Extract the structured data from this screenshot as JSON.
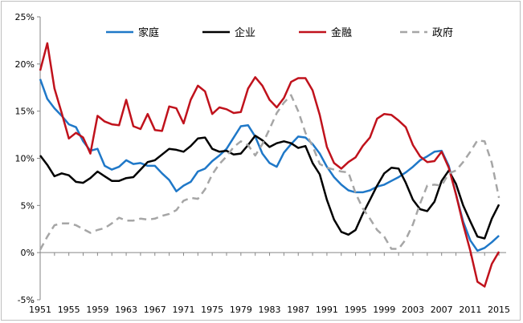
{
  "chart_data": {
    "type": "line",
    "title": "",
    "xlabel": "",
    "ylabel": "",
    "ylim": [
      -0.05,
      0.25
    ],
    "y_ticks": [
      -0.05,
      0.0,
      0.05,
      0.1,
      0.15,
      0.2,
      0.25
    ],
    "y_tick_labels": [
      "-5%",
      "0%",
      "5%",
      "10%",
      "15%",
      "20%",
      "25%"
    ],
    "xlim": [
      1951,
      2016
    ],
    "x_ticks": [
      1951,
      1955,
      1959,
      1963,
      1967,
      1971,
      1975,
      1979,
      1983,
      1987,
      1991,
      1995,
      1999,
      2003,
      2007,
      2011,
      2015
    ],
    "x_tick_labels": [
      "1951",
      "1955",
      "1959",
      "1963",
      "1967",
      "1971",
      "1975",
      "1979",
      "1983",
      "1987",
      "1991",
      "1995",
      "1999",
      "2003",
      "2007",
      "2011",
      "2015"
    ],
    "legend_position": "top",
    "grid": false,
    "series": [
      {
        "name": "家庭",
        "color": "#1f78c8",
        "dash": "solid",
        "points": [
          [
            1951,
            0.184
          ],
          [
            1952,
            0.163
          ],
          [
            1953,
            0.153
          ],
          [
            1954,
            0.145
          ],
          [
            1955,
            0.136
          ],
          [
            1956,
            0.133
          ],
          [
            1957,
            0.118
          ],
          [
            1958,
            0.108
          ],
          [
            1959,
            0.11
          ],
          [
            1960,
            0.092
          ],
          [
            1961,
            0.088
          ],
          [
            1962,
            0.091
          ],
          [
            1963,
            0.098
          ],
          [
            1964,
            0.094
          ],
          [
            1965,
            0.095
          ],
          [
            1966,
            0.092
          ],
          [
            1967,
            0.092
          ],
          [
            1968,
            0.084
          ],
          [
            1969,
            0.077
          ],
          [
            1970,
            0.065
          ],
          [
            1971,
            0.071
          ],
          [
            1972,
            0.075
          ],
          [
            1973,
            0.086
          ],
          [
            1974,
            0.089
          ],
          [
            1975,
            0.097
          ],
          [
            1976,
            0.103
          ],
          [
            1977,
            0.11
          ],
          [
            1978,
            0.122
          ],
          [
            1979,
            0.134
          ],
          [
            1980,
            0.135
          ],
          [
            1981,
            0.123
          ],
          [
            1982,
            0.105
          ],
          [
            1983,
            0.095
          ],
          [
            1984,
            0.091
          ],
          [
            1985,
            0.106
          ],
          [
            1986,
            0.115
          ],
          [
            1987,
            0.123
          ],
          [
            1988,
            0.122
          ],
          [
            1989,
            0.115
          ],
          [
            1990,
            0.105
          ],
          [
            1991,
            0.091
          ],
          [
            1992,
            0.08
          ],
          [
            1993,
            0.072
          ],
          [
            1994,
            0.066
          ],
          [
            1995,
            0.064
          ],
          [
            1996,
            0.064
          ],
          [
            1997,
            0.066
          ],
          [
            1998,
            0.07
          ],
          [
            1999,
            0.072
          ],
          [
            2000,
            0.076
          ],
          [
            2001,
            0.08
          ],
          [
            2002,
            0.085
          ],
          [
            2003,
            0.091
          ],
          [
            2004,
            0.098
          ],
          [
            2005,
            0.102
          ],
          [
            2006,
            0.107
          ],
          [
            2007,
            0.108
          ],
          [
            2008,
            0.092
          ],
          [
            2009,
            0.062
          ],
          [
            2010,
            0.033
          ],
          [
            2011,
            0.013
          ],
          [
            2012,
            0.002
          ],
          [
            2013,
            0.005
          ],
          [
            2014,
            0.011
          ],
          [
            2015,
            0.018
          ]
        ]
      },
      {
        "name": "企业",
        "color": "#000000",
        "dash": "solid",
        "points": [
          [
            1951,
            0.103
          ],
          [
            1952,
            0.093
          ],
          [
            1953,
            0.081
          ],
          [
            1954,
            0.084
          ],
          [
            1955,
            0.082
          ],
          [
            1956,
            0.075
          ],
          [
            1957,
            0.074
          ],
          [
            1958,
            0.079
          ],
          [
            1959,
            0.086
          ],
          [
            1960,
            0.081
          ],
          [
            1961,
            0.076
          ],
          [
            1962,
            0.076
          ],
          [
            1963,
            0.079
          ],
          [
            1964,
            0.08
          ],
          [
            1965,
            0.088
          ],
          [
            1966,
            0.096
          ],
          [
            1967,
            0.098
          ],
          [
            1968,
            0.104
          ],
          [
            1969,
            0.11
          ],
          [
            1970,
            0.109
          ],
          [
            1971,
            0.107
          ],
          [
            1972,
            0.113
          ],
          [
            1973,
            0.121
          ],
          [
            1974,
            0.122
          ],
          [
            1975,
            0.11
          ],
          [
            1976,
            0.107
          ],
          [
            1977,
            0.108
          ],
          [
            1978,
            0.104
          ],
          [
            1979,
            0.105
          ],
          [
            1980,
            0.114
          ],
          [
            1981,
            0.124
          ],
          [
            1982,
            0.119
          ],
          [
            1983,
            0.112
          ],
          [
            1984,
            0.116
          ],
          [
            1985,
            0.118
          ],
          [
            1986,
            0.116
          ],
          [
            1987,
            0.111
          ],
          [
            1988,
            0.113
          ],
          [
            1989,
            0.095
          ],
          [
            1990,
            0.083
          ],
          [
            1991,
            0.056
          ],
          [
            1992,
            0.035
          ],
          [
            1993,
            0.022
          ],
          [
            1994,
            0.019
          ],
          [
            1995,
            0.024
          ],
          [
            1996,
            0.041
          ],
          [
            1997,
            0.056
          ],
          [
            1998,
            0.071
          ],
          [
            1999,
            0.084
          ],
          [
            2000,
            0.09
          ],
          [
            2001,
            0.089
          ],
          [
            2002,
            0.074
          ],
          [
            2003,
            0.056
          ],
          [
            2004,
            0.046
          ],
          [
            2005,
            0.044
          ],
          [
            2006,
            0.054
          ],
          [
            2007,
            0.076
          ],
          [
            2008,
            0.087
          ],
          [
            2009,
            0.073
          ],
          [
            2010,
            0.05
          ],
          [
            2011,
            0.033
          ],
          [
            2012,
            0.017
          ],
          [
            2013,
            0.015
          ],
          [
            2014,
            0.036
          ],
          [
            2015,
            0.051
          ]
        ]
      },
      {
        "name": "金融",
        "color": "#c0121c",
        "dash": "solid",
        "points": [
          [
            1951,
            0.193
          ],
          [
            1952,
            0.222
          ],
          [
            1953,
            0.174
          ],
          [
            1954,
            0.148
          ],
          [
            1955,
            0.121
          ],
          [
            1956,
            0.127
          ],
          [
            1957,
            0.122
          ],
          [
            1958,
            0.105
          ],
          [
            1959,
            0.145
          ],
          [
            1960,
            0.139
          ],
          [
            1961,
            0.136
          ],
          [
            1962,
            0.135
          ],
          [
            1963,
            0.162
          ],
          [
            1964,
            0.134
          ],
          [
            1965,
            0.131
          ],
          [
            1966,
            0.147
          ],
          [
            1967,
            0.13
          ],
          [
            1968,
            0.129
          ],
          [
            1969,
            0.155
          ],
          [
            1970,
            0.153
          ],
          [
            1971,
            0.137
          ],
          [
            1972,
            0.162
          ],
          [
            1973,
            0.177
          ],
          [
            1974,
            0.171
          ],
          [
            1975,
            0.147
          ],
          [
            1976,
            0.154
          ],
          [
            1977,
            0.152
          ],
          [
            1978,
            0.148
          ],
          [
            1979,
            0.149
          ],
          [
            1980,
            0.174
          ],
          [
            1981,
            0.186
          ],
          [
            1982,
            0.177
          ],
          [
            1983,
            0.162
          ],
          [
            1984,
            0.154
          ],
          [
            1985,
            0.164
          ],
          [
            1986,
            0.181
          ],
          [
            1987,
            0.185
          ],
          [
            1988,
            0.185
          ],
          [
            1989,
            0.172
          ],
          [
            1990,
            0.146
          ],
          [
            1991,
            0.112
          ],
          [
            1992,
            0.095
          ],
          [
            1993,
            0.089
          ],
          [
            1994,
            0.096
          ],
          [
            1995,
            0.101
          ],
          [
            1996,
            0.113
          ],
          [
            1997,
            0.122
          ],
          [
            1998,
            0.142
          ],
          [
            1999,
            0.147
          ],
          [
            2000,
            0.146
          ],
          [
            2001,
            0.14
          ],
          [
            2002,
            0.133
          ],
          [
            2003,
            0.114
          ],
          [
            2004,
            0.102
          ],
          [
            2005,
            0.096
          ],
          [
            2006,
            0.097
          ],
          [
            2007,
            0.107
          ],
          [
            2008,
            0.09
          ],
          [
            2009,
            0.062
          ],
          [
            2010,
            0.03
          ],
          [
            2011,
            0.002
          ],
          [
            2012,
            -0.031
          ],
          [
            2013,
            -0.036
          ],
          [
            2014,
            -0.012
          ],
          [
            2015,
            0.001
          ]
        ]
      },
      {
        "name": "政府",
        "color": "#a6a6a6",
        "dash": "dashed",
        "points": [
          [
            1951,
            0.003
          ],
          [
            1952,
            0.017
          ],
          [
            1953,
            0.029
          ],
          [
            1954,
            0.031
          ],
          [
            1955,
            0.031
          ],
          [
            1956,
            0.029
          ],
          [
            1957,
            0.025
          ],
          [
            1958,
            0.021
          ],
          [
            1959,
            0.024
          ],
          [
            1960,
            0.026
          ],
          [
            1961,
            0.031
          ],
          [
            1962,
            0.037
          ],
          [
            1963,
            0.034
          ],
          [
            1964,
            0.034
          ],
          [
            1965,
            0.036
          ],
          [
            1966,
            0.035
          ],
          [
            1967,
            0.036
          ],
          [
            1968,
            0.039
          ],
          [
            1969,
            0.041
          ],
          [
            1970,
            0.045
          ],
          [
            1971,
            0.055
          ],
          [
            1972,
            0.058
          ],
          [
            1973,
            0.057
          ],
          [
            1974,
            0.067
          ],
          [
            1975,
            0.083
          ],
          [
            1976,
            0.094
          ],
          [
            1977,
            0.102
          ],
          [
            1978,
            0.112
          ],
          [
            1979,
            0.118
          ],
          [
            1980,
            0.114
          ],
          [
            1981,
            0.103
          ],
          [
            1982,
            0.115
          ],
          [
            1983,
            0.131
          ],
          [
            1984,
            0.148
          ],
          [
            1985,
            0.159
          ],
          [
            1986,
            0.167
          ],
          [
            1987,
            0.15
          ],
          [
            1988,
            0.127
          ],
          [
            1989,
            0.113
          ],
          [
            1990,
            0.094
          ],
          [
            1991,
            0.09
          ],
          [
            1992,
            0.088
          ],
          [
            1993,
            0.086
          ],
          [
            1994,
            0.085
          ],
          [
            1995,
            0.063
          ],
          [
            1996,
            0.047
          ],
          [
            1997,
            0.036
          ],
          [
            1998,
            0.024
          ],
          [
            1999,
            0.017
          ],
          [
            2000,
            0.004
          ],
          [
            2001,
            0.004
          ],
          [
            2002,
            0.014
          ],
          [
            2003,
            0.03
          ],
          [
            2004,
            0.052
          ],
          [
            2005,
            0.071
          ],
          [
            2006,
            0.072
          ],
          [
            2007,
            0.071
          ],
          [
            2008,
            0.084
          ],
          [
            2009,
            0.087
          ],
          [
            2010,
            0.096
          ],
          [
            2011,
            0.107
          ],
          [
            2012,
            0.119
          ],
          [
            2013,
            0.118
          ],
          [
            2014,
            0.095
          ],
          [
            2015,
            0.058
          ]
        ]
      }
    ]
  }
}
